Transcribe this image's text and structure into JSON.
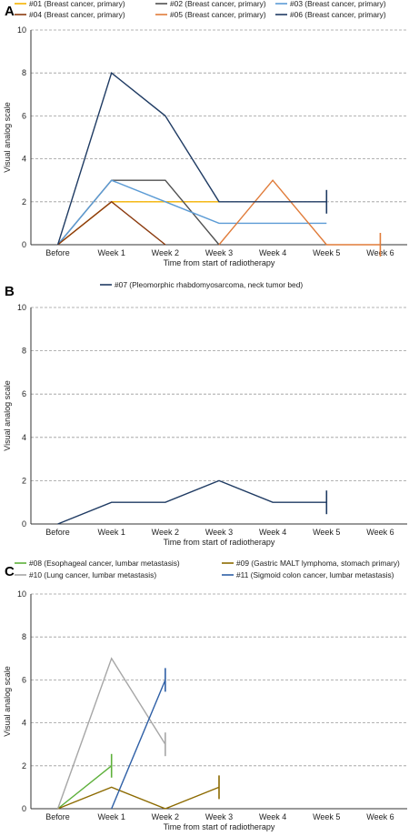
{
  "chart_data": [
    {
      "type": "line",
      "panel_label": "A",
      "categories": [
        "Before",
        "Week 1",
        "Week 2",
        "Week 3",
        "Week 4",
        "Week 5",
        "Week 6"
      ],
      "xlabel": "Time from start of radiotherapy",
      "ylabel": "Visual analog scale",
      "ylim": [
        0,
        10
      ],
      "yticks": [
        0,
        2,
        4,
        6,
        8,
        10
      ],
      "grid": true,
      "legend_columns": 3,
      "legend_placement": "top",
      "series": [
        {
          "name": "#01 (Breast cancer, primary)",
          "color": "#F5B300",
          "values": [
            0,
            2,
            2,
            2,
            null,
            null,
            null
          ]
        },
        {
          "name": "#02 (Breast cancer, primary)",
          "color": "#505050",
          "values": [
            0,
            3,
            3,
            0,
            null,
            null,
            null
          ]
        },
        {
          "name": "#03 (Breast cancer, primary)",
          "color": "#5B9BD5",
          "values": [
            0,
            3,
            2,
            1,
            1,
            1,
            null
          ]
        },
        {
          "name": "#04 (Breast cancer, primary)",
          "color": "#8B3A0E",
          "values": [
            0,
            2,
            0,
            null,
            null,
            null,
            null
          ]
        },
        {
          "name": "#05 (Breast cancer, primary)",
          "color": "#E07B39",
          "values": [
            null,
            null,
            null,
            0,
            3,
            0,
            0
          ]
        },
        {
          "name": "#06 (Breast cancer, primary)",
          "color": "#1F3B63",
          "values": [
            0,
            8,
            6,
            2,
            2,
            2,
            null
          ]
        }
      ],
      "end_markers": [
        {
          "series": "#06 (Breast cancer, primary)",
          "x": "Week 5",
          "y": 2
        },
        {
          "series": "#05 (Breast cancer, primary)",
          "x": "Week 6",
          "y": 0
        }
      ]
    },
    {
      "type": "line",
      "panel_label": "B",
      "categories": [
        "Before",
        "Week 1",
        "Week 2",
        "Week 3",
        "Week 4",
        "Week 5",
        "Week 6"
      ],
      "xlabel": "Time from start of radiotherapy",
      "ylabel": "Visual analog scale",
      "ylim": [
        0,
        10
      ],
      "yticks": [
        0,
        2,
        4,
        6,
        8,
        10
      ],
      "grid": true,
      "legend_columns": 1,
      "legend_placement": "top",
      "series": [
        {
          "name": "#07 (Pleomorphic rhabdomyosarcoma, neck tumor bed)",
          "color": "#1F3B63",
          "values": [
            0,
            1,
            1,
            2,
            1,
            1,
            null
          ]
        }
      ],
      "end_markers": [
        {
          "series": "#07 (Pleomorphic rhabdomyosarcoma, neck tumor bed)",
          "x": "Week 5",
          "y": 1
        }
      ]
    },
    {
      "type": "line",
      "panel_label": "C",
      "categories": [
        "Before",
        "Week 1",
        "Week 2",
        "Week 3",
        "Week 4",
        "Week 5",
        "Week 6"
      ],
      "xlabel": "Time from start of radiotherapy",
      "ylabel": "Visual analog scale",
      "ylim": [
        0,
        10
      ],
      "yticks": [
        0,
        2,
        4,
        6,
        8,
        10
      ],
      "grid": true,
      "legend_columns": 2,
      "legend_placement": "top",
      "series": [
        {
          "name": "#08 (Esophageal cancer, lumbar metastasis)",
          "color": "#5DB03A",
          "values": [
            0,
            2,
            null,
            null,
            null,
            null,
            null
          ]
        },
        {
          "name": "#09 (Gastric MALT lymphoma, stomach primary)",
          "color": "#8C6A00",
          "values": [
            0,
            1,
            0,
            1,
            null,
            null,
            null
          ]
        },
        {
          "name": "#10 (Lung cancer, lumbar metastasis)",
          "color": "#A6A6A6",
          "values": [
            0,
            7,
            3,
            null,
            null,
            null,
            null
          ]
        },
        {
          "name": "#11 (Sigmoid colon cancer, lumbar metastasis)",
          "color": "#2E5FA6",
          "values": [
            null,
            0,
            6,
            null,
            null,
            null,
            null
          ]
        }
      ],
      "end_markers": [
        {
          "series": "#08 (Esophageal cancer, lumbar metastasis)",
          "x": "Week 1",
          "y": 2
        },
        {
          "series": "#10 (Lung cancer, lumbar metastasis)",
          "x": "Week 2",
          "y": 3
        },
        {
          "series": "#11 (Sigmoid colon cancer, lumbar metastasis)",
          "x": "Week 2",
          "y": 6
        },
        {
          "series": "#09 (Gastric MALT lymphoma, stomach primary)",
          "x": "Week 3",
          "y": 1
        }
      ]
    }
  ]
}
